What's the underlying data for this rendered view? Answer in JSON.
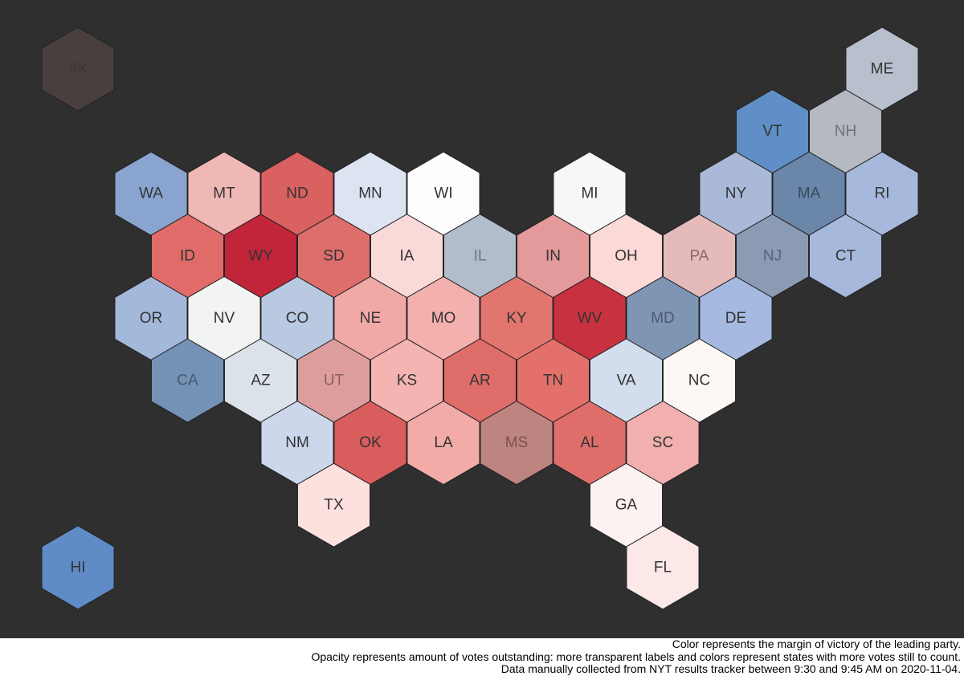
{
  "map": {
    "rows": [
      [
        {
          "label": "AK",
          "color": "#4a3f3f",
          "label_color": "#3d3636"
        },
        {
          "label": "ME",
          "color": "#b8c0ce"
        }
      ],
      [
        {
          "label": "VT",
          "color": "#5f8fc6"
        },
        {
          "label": "NH",
          "color": "#b4b9c2",
          "label_color": "#6e7278"
        }
      ],
      [
        {
          "label": "WA",
          "color": "#89a5cf"
        },
        {
          "label": "MT",
          "color": "#f0b8b5"
        },
        {
          "label": "ND",
          "color": "#d9615f"
        },
        {
          "label": "MN",
          "color": "#dde4f1"
        },
        {
          "label": "WI",
          "color": "#fdfdfe"
        },
        {
          "label": "MI",
          "color": "#f7f7f7"
        },
        {
          "label": "NY",
          "color": "#aab9d8"
        },
        {
          "label": "MA",
          "color": "#6a86a8",
          "label_color": "#3a4a5c"
        },
        {
          "label": "RI",
          "color": "#a6b8dc"
        }
      ],
      [
        {
          "label": "ID",
          "color": "#e06b69"
        },
        {
          "label": "WY",
          "color": "#c2253a"
        },
        {
          "label": "SD",
          "color": "#de6e6c"
        },
        {
          "label": "IA",
          "color": "#f9dad8"
        },
        {
          "label": "IL",
          "color": "#b2bccc",
          "label_color": "#6c7582"
        },
        {
          "label": "IN",
          "color": "#e4999a"
        },
        {
          "label": "OH",
          "color": "#fbd9d6"
        },
        {
          "label": "PA",
          "color": "#e4bbba",
          "label_color": "#8a6a6a"
        },
        {
          "label": "NJ",
          "color": "#8b9bb3",
          "label_color": "#55617a"
        },
        {
          "label": "CT",
          "color": "#a6b8dc"
        }
      ],
      [
        {
          "label": "OR",
          "color": "#a4b8dc"
        },
        {
          "label": "NV",
          "color": "#f2f3f3"
        },
        {
          "label": "CO",
          "color": "#b8c9e1"
        },
        {
          "label": "NE",
          "color": "#f1a9a6"
        },
        {
          "label": "MO",
          "color": "#f3b0ad"
        },
        {
          "label": "KY",
          "color": "#e2766f"
        },
        {
          "label": "WV",
          "color": "#c8313f"
        },
        {
          "label": "MD",
          "color": "#7e95b3",
          "label_color": "#4d5b70"
        },
        {
          "label": "DE",
          "color": "#a5b9e1"
        }
      ],
      [
        {
          "label": "CA",
          "color": "#7392b5",
          "label_color": "#455a73"
        },
        {
          "label": "AZ",
          "color": "#dce2ea"
        },
        {
          "label": "UT",
          "color": "#dc9d9c",
          "label_color": "#8a5f5f"
        },
        {
          "label": "KS",
          "color": "#f4b4b1"
        },
        {
          "label": "AR",
          "color": "#df6d69"
        },
        {
          "label": "TN",
          "color": "#e4706b"
        },
        {
          "label": "VA",
          "color": "#d2ddee"
        },
        {
          "label": "NC",
          "color": "#fdf8f6"
        }
      ],
      [
        {
          "label": "NM",
          "color": "#cdd7ec"
        },
        {
          "label": "OK",
          "color": "#d85d5c"
        },
        {
          "label": "LA",
          "color": "#f2aba7"
        },
        {
          "label": "MS",
          "color": "#be8480",
          "label_color": "#7c5150"
        },
        {
          "label": "AL",
          "color": "#df6e6b"
        },
        {
          "label": "SC",
          "color": "#f1b0ae"
        }
      ],
      [
        {
          "label": "TX",
          "color": "#fde1df"
        },
        {
          "label": "GA",
          "color": "#fcf2f1"
        }
      ],
      [
        {
          "label": "HI",
          "color": "#5f8bc6"
        },
        {
          "label": "FL",
          "color": "#fde8e8"
        }
      ]
    ]
  },
  "footer": {
    "lines": [
      "Color represents the margin of victory of the leading party.",
      "Opacity represents amount of votes outstanding: more transparent labels and colors represent states with more votes still to count.",
      "Data manually collected from NYT results tracker between 9:30 and 9:45 AM on 2020-11-04."
    ]
  }
}
